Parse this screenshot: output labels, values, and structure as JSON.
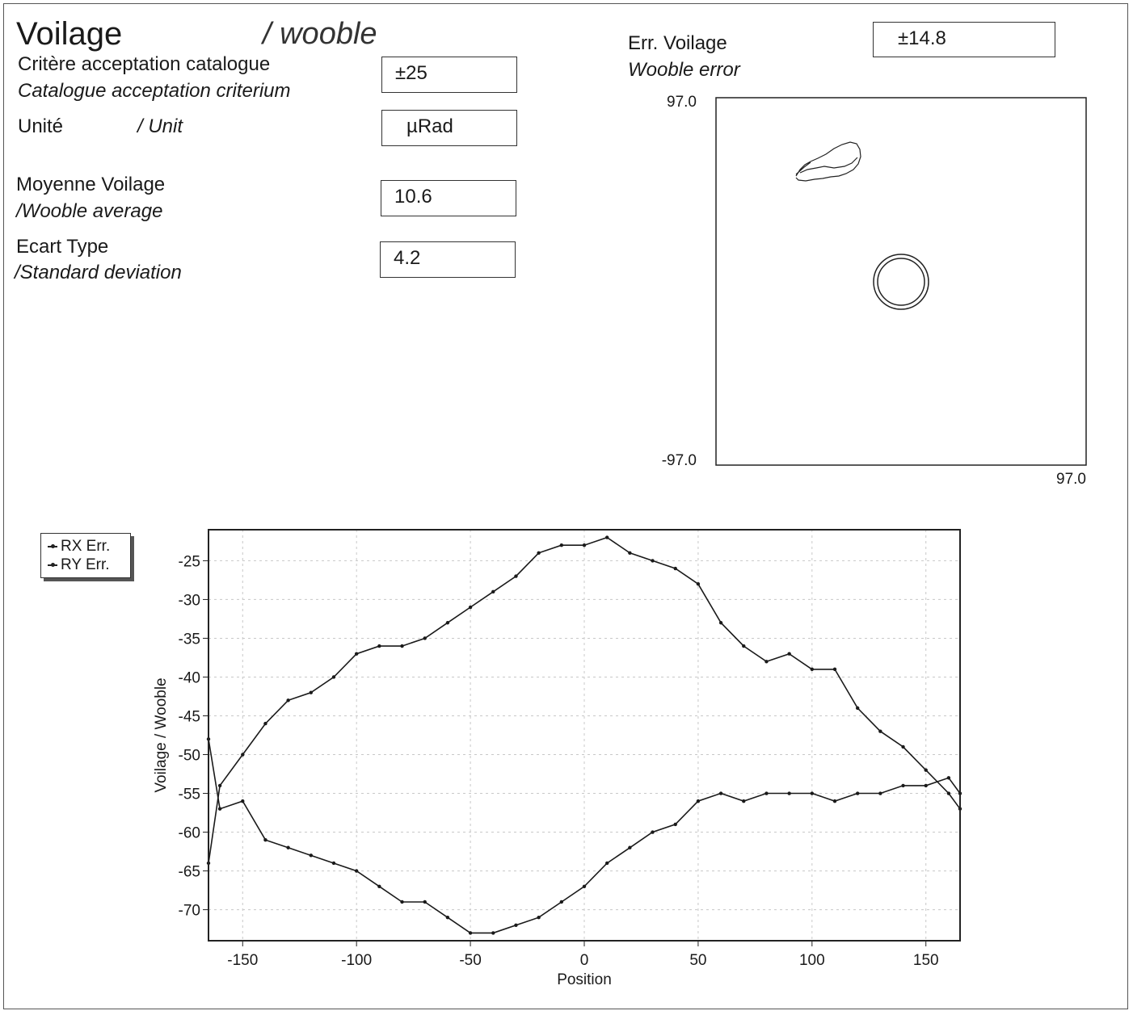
{
  "header": {
    "title_fr": "Voilage",
    "title_en": "/ wooble"
  },
  "fields": {
    "criteria_fr": "Critère acceptation catalogue",
    "criteria_en": "Catalogue acceptation criterium",
    "criteria_value": "±25",
    "unit_fr": "Unité",
    "unit_en": "/ Unit",
    "unit_value": "µRad",
    "mean_fr": "Moyenne Voilage",
    "mean_en": "/Wooble average",
    "mean_value": "10.6",
    "std_fr": "Ecart Type",
    "std_en": "/Standard deviation",
    "std_value": "4.2",
    "err_fr": "Err. Voilage",
    "err_en": "Wooble error",
    "err_value": "±14.8"
  },
  "polar": {
    "y_max_label": "97.0",
    "y_min_label": "-97.0",
    "x_max_label": "97.0"
  },
  "chart_data": {
    "type": "line",
    "xlabel": "Position",
    "ylabel": "Voilage / Wooble",
    "xlim": [
      -165,
      165
    ],
    "ylim": [
      -74,
      -21
    ],
    "xticks": [
      -150,
      -100,
      -50,
      0,
      50,
      100,
      150
    ],
    "yticks": [
      -25,
      -30,
      -35,
      -40,
      -45,
      -50,
      -55,
      -60,
      -65,
      -70
    ],
    "grid": true,
    "legend_position": "top-left-outside",
    "series": [
      {
        "name": "RX Err.",
        "x": [
          -165,
          -160,
          -150,
          -140,
          -130,
          -120,
          -110,
          -100,
          -90,
          -80,
          -70,
          -60,
          -50,
          -40,
          -30,
          -20,
          -10,
          0,
          10,
          20,
          30,
          40,
          50,
          60,
          70,
          80,
          90,
          100,
          110,
          120,
          130,
          140,
          150,
          160,
          165
        ],
        "y": [
          -64,
          -54,
          -50,
          -46,
          -43,
          -42,
          -40,
          -37,
          -36,
          -36,
          -35,
          -33,
          -31,
          -29,
          -27,
          -24,
          -23,
          -23,
          -22,
          -24,
          -25,
          -26,
          -28,
          -33,
          -36,
          -38,
          -37,
          -39,
          -39,
          -44,
          -47,
          -49,
          -52,
          -55,
          -57
        ]
      },
      {
        "name": "RY Err.",
        "x": [
          -165,
          -160,
          -150,
          -140,
          -130,
          -120,
          -110,
          -100,
          -90,
          -80,
          -70,
          -60,
          -50,
          -40,
          -30,
          -20,
          -10,
          0,
          10,
          20,
          30,
          40,
          50,
          60,
          70,
          80,
          90,
          100,
          110,
          120,
          130,
          140,
          150,
          160,
          165
        ],
        "y": [
          -48,
          -57,
          -56,
          -61,
          -62,
          -63,
          -64,
          -65,
          -67,
          -69,
          -69,
          -71,
          -73,
          -73,
          -72,
          -71,
          -69,
          -67,
          -64,
          -62,
          -60,
          -59,
          -56,
          -55,
          -56,
          -55,
          -55,
          -55,
          -56,
          -55,
          -55,
          -54,
          -54,
          -53,
          -55
        ]
      }
    ]
  },
  "colors": {
    "ink": "#1a1a1a",
    "grid": "#c8c8c8",
    "frame": "#555555"
  }
}
